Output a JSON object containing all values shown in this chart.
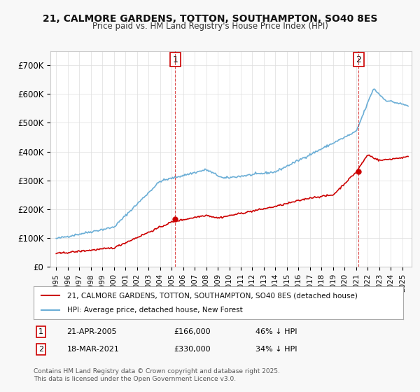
{
  "title_line1": "21, CALMORE GARDENS, TOTTON, SOUTHAMPTON, SO40 8ES",
  "title_line2": "Price paid vs. HM Land Registry's House Price Index (HPI)",
  "legend_line1": "21, CALMORE GARDENS, TOTTON, SOUTHAMPTON, SO40 8ES (detached house)",
  "legend_line2": "HPI: Average price, detached house, New Forest",
  "footnote": "Contains HM Land Registry data © Crown copyright and database right 2025.\nThis data is licensed under the Open Government Licence v3.0.",
  "annotation1_label": "1",
  "annotation1_date": "21-APR-2005",
  "annotation1_price": "£166,000",
  "annotation1_hpi": "46% ↓ HPI",
  "annotation2_label": "2",
  "annotation2_date": "18-MAR-2021",
  "annotation2_price": "£330,000",
  "annotation2_hpi": "34% ↓ HPI",
  "vline1_x": 2005.31,
  "vline2_x": 2021.21,
  "dot1_x": 2005.31,
  "dot1_y": 166000,
  "dot2_x": 2021.21,
  "dot2_y": 330000,
  "property_color": "#cc0000",
  "hpi_color": "#6baed6",
  "vline_color": "#cc0000",
  "background_color": "#f8f8f8",
  "plot_bg_color": "#ffffff",
  "ylim": [
    0,
    750000
  ],
  "yticks": [
    0,
    100000,
    200000,
    300000,
    400000,
    500000,
    600000,
    700000
  ],
  "ytick_labels": [
    "£0",
    "£100K",
    "£200K",
    "£300K",
    "£400K",
    "£500K",
    "£600K",
    "£700K"
  ],
  "xlim_start": 1994.5,
  "xlim_end": 2025.8,
  "xticks": [
    1995,
    1996,
    1997,
    1998,
    1999,
    2000,
    2001,
    2002,
    2003,
    2004,
    2005,
    2006,
    2007,
    2008,
    2009,
    2010,
    2011,
    2012,
    2013,
    2014,
    2015,
    2016,
    2017,
    2018,
    2019,
    2020,
    2021,
    2022,
    2023,
    2024,
    2025
  ]
}
